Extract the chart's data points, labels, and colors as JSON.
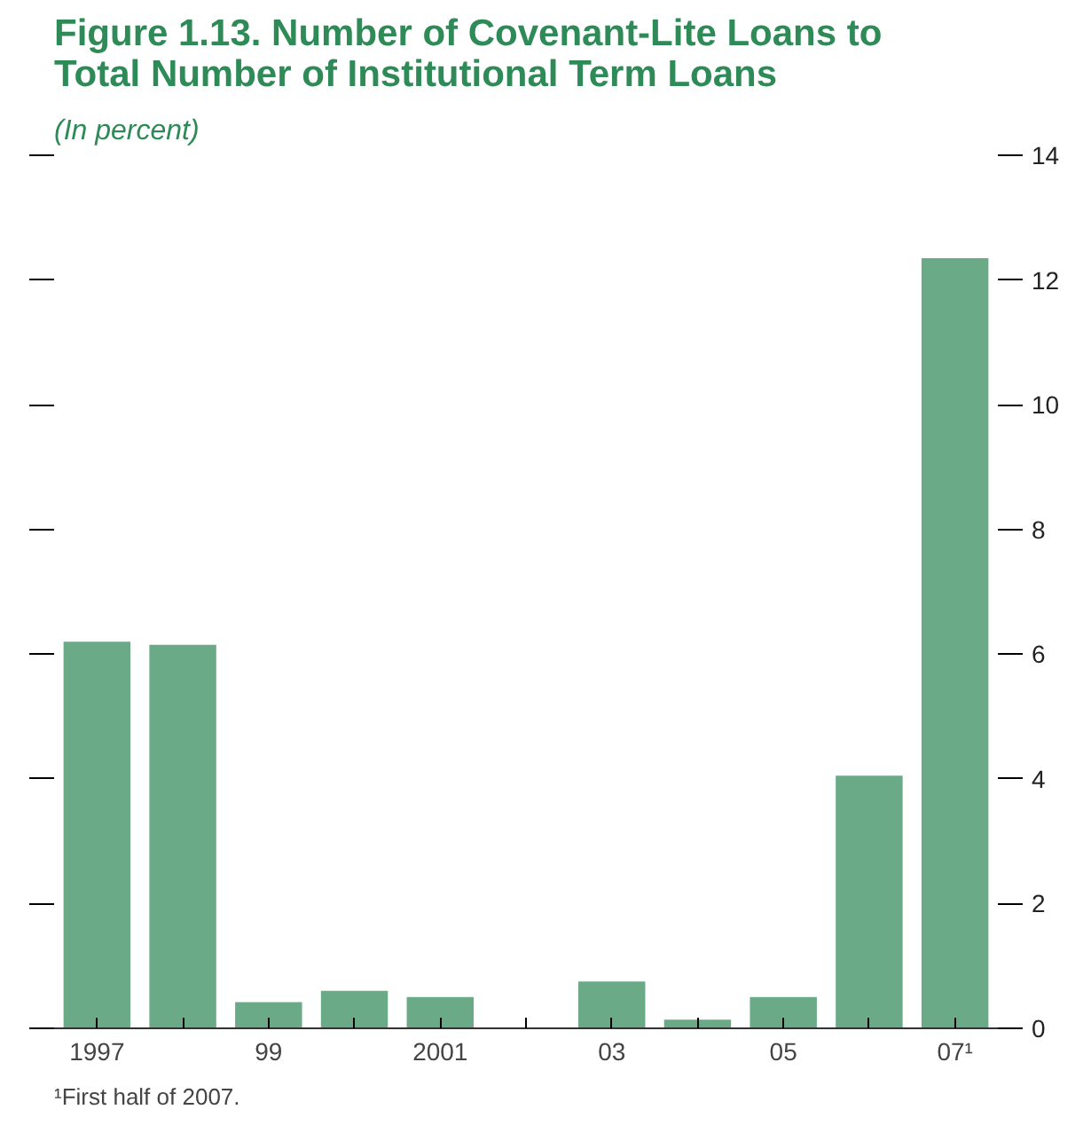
{
  "chart_data": {
    "type": "bar",
    "title": "Figure 1.13. Number of Covenant-Lite Loans to\nTotal Number of Institutional Term Loans",
    "subtitle": "(In percent)",
    "categories": [
      "1997",
      null,
      "99",
      null,
      "2001",
      null,
      "03",
      null,
      "05",
      null,
      "07¹"
    ],
    "values": [
      6.2,
      6.15,
      0.42,
      0.6,
      0.5,
      0,
      0.75,
      0.14,
      0.5,
      4.05,
      12.35
    ],
    "color": "#6aaa86",
    "ylim": [
      0,
      14
    ],
    "yticks": [
      0,
      2,
      4,
      6,
      8,
      10,
      12,
      14
    ],
    "grid": false,
    "annotations": [
      "¹First half of 2007."
    ]
  }
}
